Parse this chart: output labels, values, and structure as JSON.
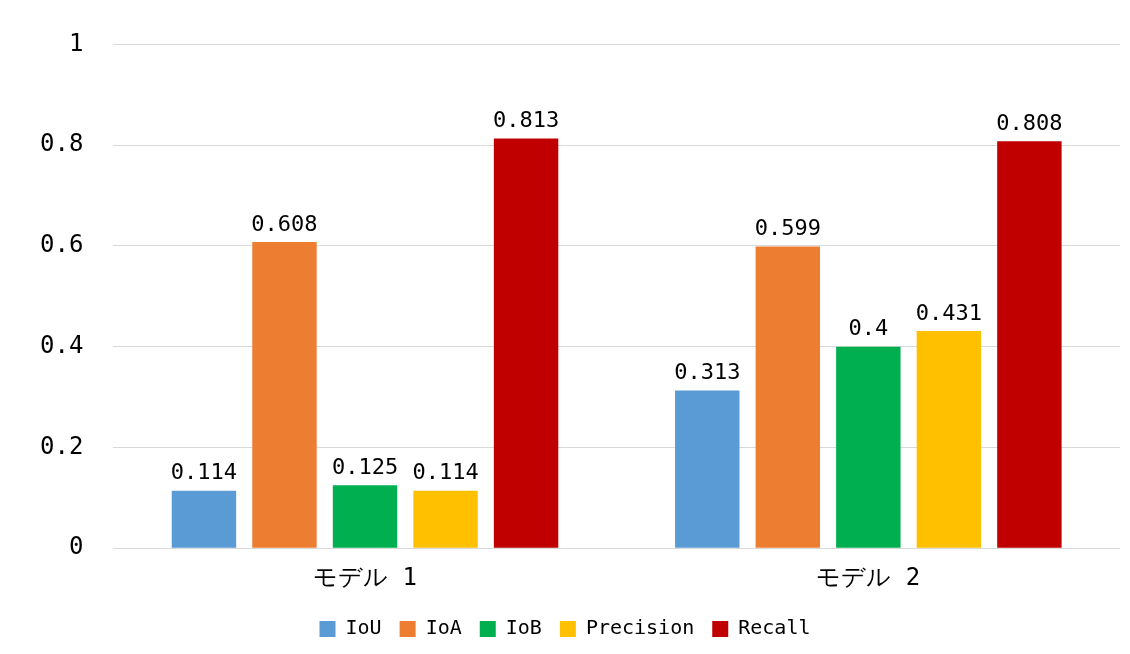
{
  "chart_data": {
    "type": "bar",
    "categories": [
      "モデル 1",
      "モデル 2"
    ],
    "series": [
      {
        "name": "IoU",
        "color": "#5b9bd5",
        "values": [
          0.114,
          0.313
        ]
      },
      {
        "name": "IoA",
        "color": "#ed7d31",
        "values": [
          0.608,
          0.599
        ]
      },
      {
        "name": "IoB",
        "color": "#00b050",
        "values": [
          0.125,
          0.4
        ]
      },
      {
        "name": "Precision",
        "color": "#ffc000",
        "values": [
          0.114,
          0.431
        ]
      },
      {
        "name": "Recall",
        "color": "#c00000",
        "values": [
          0.813,
          0.808
        ]
      }
    ],
    "ylim": [
      0,
      1
    ],
    "yticks": [
      0,
      0.2,
      0.4,
      0.6,
      0.8,
      1
    ],
    "grid": "y",
    "legend": "bottom",
    "data_labels": true
  }
}
